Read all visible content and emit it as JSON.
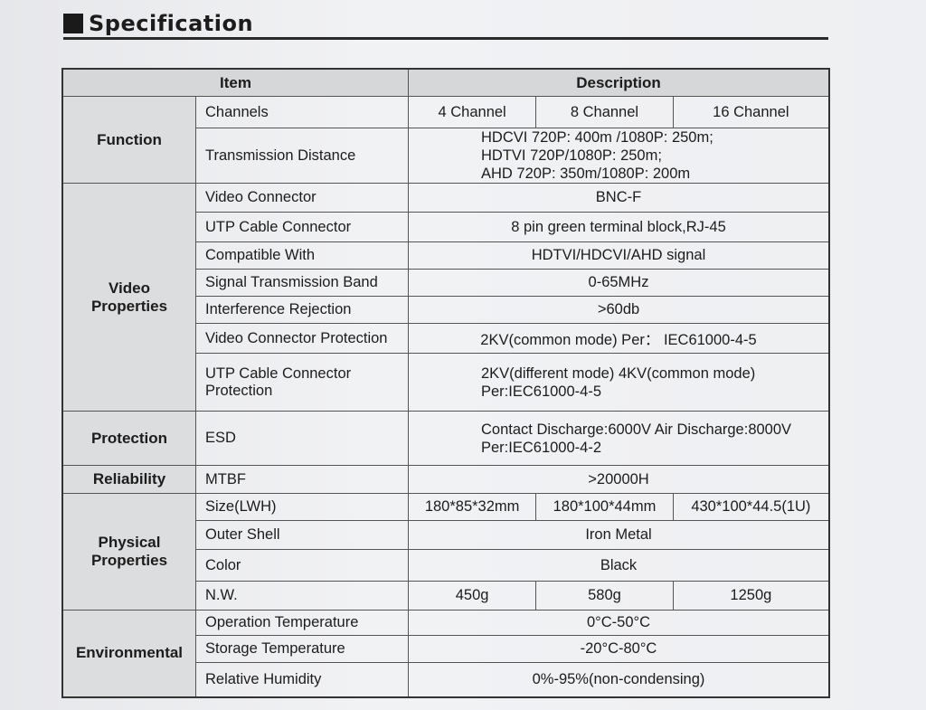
{
  "title": "Specification",
  "header": {
    "item": "Item",
    "description": "Description"
  },
  "groups": [
    {
      "label": "Function",
      "rows": [
        {
          "item": "Channels",
          "desc": [
            "4 Channel",
            "8 Channel",
            "16 Channel"
          ]
        },
        {
          "item": "Transmission Distance",
          "desc": "HDCVI 720P: 400m /1080P: 250m;\nHDTVI 720P/1080P: 250m;\nAHD 720P: 350m/1080P: 200m",
          "left": true
        }
      ]
    },
    {
      "label": "Video Properties",
      "rows": [
        {
          "item": "Video Connector",
          "desc": "BNC-F"
        },
        {
          "item": "UTP Cable Connector",
          "desc": "8 pin green terminal block,RJ-45"
        },
        {
          "item": "Compatible With",
          "desc": "HDTVI/HDCVI/AHD signal"
        },
        {
          "item": "Signal Transmission Band",
          "desc": "0-65MHz"
        },
        {
          "item": "Interference Rejection",
          "desc": ">60db"
        },
        {
          "item": "Video Connector Protection",
          "desc": "2KV(common mode) Per： IEC61000-4-5"
        },
        {
          "item": "UTP Cable Connector Protection",
          "desc": "2KV(different mode)  4KV(common mode)\nPer:IEC61000-4-5",
          "left": true
        }
      ]
    },
    {
      "label": "Protection",
      "rows": [
        {
          "item": "ESD",
          "desc": "Contact Discharge:6000V  Air Discharge:8000V\nPer:IEC61000-4-2",
          "left": true
        }
      ]
    },
    {
      "label": "Reliability",
      "rows": [
        {
          "item": "MTBF",
          "desc": ">20000H"
        }
      ]
    },
    {
      "label": "Physical Properties",
      "rows": [
        {
          "item": "Size(LWH)",
          "desc": [
            "180*85*32mm",
            "180*100*44mm",
            "430*100*44.5(1U)"
          ]
        },
        {
          "item": "Outer Shell",
          "desc": "Iron Metal"
        },
        {
          "item": "Color",
          "desc": "Black"
        },
        {
          "item": "N.W.",
          "desc": [
            "450g",
            "580g",
            "1250g"
          ]
        }
      ]
    },
    {
      "label": "Environmental",
      "rows": [
        {
          "item": "Operation Temperature",
          "desc": "0°C-50°C"
        },
        {
          "item": "Storage Temperature",
          "desc": "-20°C-80°C"
        },
        {
          "item": "Relative Humidity",
          "desc": "0%-95%(non-condensing)"
        }
      ]
    }
  ]
}
